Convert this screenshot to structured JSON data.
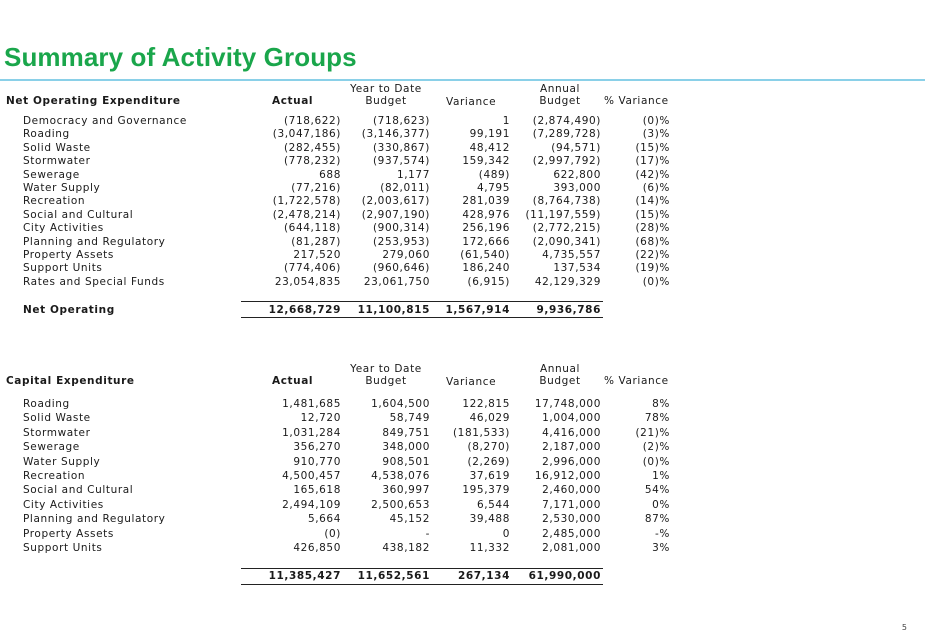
{
  "title": "Summary of Activity Groups",
  "page_number": "5",
  "table1": {
    "heading": "Net Operating Expenditure",
    "cols": {
      "actual": "Actual",
      "ytd_top": "Year to Date",
      "budget": "Budget",
      "variance": "Variance",
      "annual_top": "Annual",
      "annual_budget": "Budget",
      "pct": "% Variance"
    },
    "rows": [
      [
        "Democracy and Governance",
        "(718,622)",
        "(718,623)",
        "1",
        "(2,874,490)",
        "(0)%"
      ],
      [
        "Roading",
        "(3,047,186)",
        "(3,146,377)",
        "99,191",
        "(7,289,728)",
        "(3)%"
      ],
      [
        "Solid Waste",
        "(282,455)",
        "(330,867)",
        "48,412",
        "(94,571)",
        "(15)%"
      ],
      [
        "Stormwater",
        "(778,232)",
        "(937,574)",
        "159,342",
        "(2,997,792)",
        "(17)%"
      ],
      [
        "Sewerage",
        "688",
        "1,177",
        "(489)",
        "622,800",
        "(42)%"
      ],
      [
        "Water Supply",
        "(77,216)",
        "(82,011)",
        "4,795",
        "393,000",
        "(6)%"
      ],
      [
        "Recreation",
        "(1,722,578)",
        "(2,003,617)",
        "281,039",
        "(8,764,738)",
        "(14)%"
      ],
      [
        "Social and Cultural",
        "(2,478,214)",
        "(2,907,190)",
        "428,976",
        "(11,197,559)",
        "(15)%"
      ],
      [
        "City Activities",
        "(644,118)",
        "(900,314)",
        "256,196",
        "(2,772,215)",
        "(28)%"
      ],
      [
        "Planning and Regulatory",
        "(81,287)",
        "(253,953)",
        "172,666",
        "(2,090,341)",
        "(68)%"
      ],
      [
        "Property Assets",
        "217,520",
        "279,060",
        "(61,540)",
        "4,735,557",
        "(22)%"
      ],
      [
        "Support Units",
        "(774,406)",
        "(960,646)",
        "186,240",
        "137,534",
        "(19)%"
      ],
      [
        "Rates and Special Funds",
        "23,054,835",
        "23,061,750",
        "(6,915)",
        "42,129,329",
        "(0)%"
      ]
    ],
    "total": [
      "Net Operating",
      "12,668,729",
      "11,100,815",
      "1,567,914",
      "9,936,786",
      ""
    ]
  },
  "table2": {
    "heading": "Capital Expenditure",
    "cols": {
      "actual": "Actual",
      "ytd_top": "Year to Date",
      "budget": "Budget",
      "variance": "Variance",
      "annual_top": "Annual",
      "annual_budget": "Budget",
      "pct": "% Variance"
    },
    "rows": [
      [
        "Roading",
        "1,481,685",
        "1,604,500",
        "122,815",
        "17,748,000",
        "8%"
      ],
      [
        "Solid Waste",
        "12,720",
        "58,749",
        "46,029",
        "1,004,000",
        "78%"
      ],
      [
        "Stormwater",
        "1,031,284",
        "849,751",
        "(181,533)",
        "4,416,000",
        "(21)%"
      ],
      [
        "Sewerage",
        "356,270",
        "348,000",
        "(8,270)",
        "2,187,000",
        "(2)%"
      ],
      [
        "Water Supply",
        "910,770",
        "908,501",
        "(2,269)",
        "2,996,000",
        "(0)%"
      ],
      [
        "Recreation",
        "4,500,457",
        "4,538,076",
        "37,619",
        "16,912,000",
        "1%"
      ],
      [
        "Social and Cultural",
        "165,618",
        "360,997",
        "195,379",
        "2,460,000",
        "54%"
      ],
      [
        "City Activities",
        "2,494,109",
        "2,500,653",
        "6,544",
        "7,171,000",
        "0%"
      ],
      [
        "Planning and Regulatory",
        "5,664",
        "45,152",
        "39,488",
        "2,530,000",
        "87%"
      ],
      [
        "Property Assets",
        "(0)",
        "-",
        "0",
        "2,485,000",
        "-%"
      ],
      [
        "Support Units",
        "426,850",
        "438,182",
        "11,332",
        "2,081,000",
        "3%"
      ]
    ],
    "total": [
      "",
      "11,385,427",
      "11,652,561",
      "267,134",
      "61,990,000",
      ""
    ]
  }
}
